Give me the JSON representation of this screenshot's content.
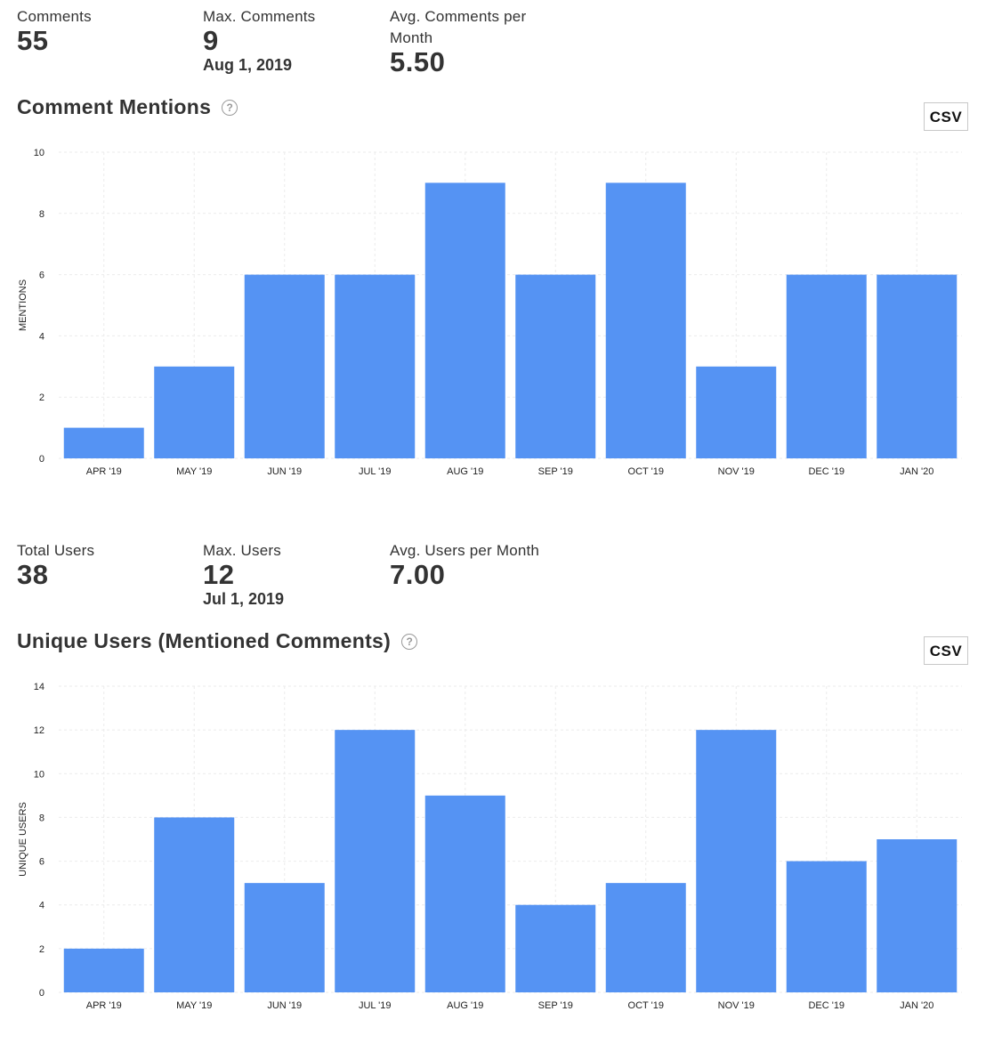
{
  "sections": [
    {
      "stats": [
        {
          "label": "Comments",
          "value": "55",
          "sub": ""
        },
        {
          "label": "Max. Comments",
          "value": "9",
          "sub": "Aug 1, 2019"
        },
        {
          "label": "Avg. Comments per Month",
          "value": "5.50",
          "sub": ""
        }
      ],
      "chart_title": "Comment Mentions",
      "help_glyph": "?",
      "csv_label": "CSV"
    },
    {
      "stats": [
        {
          "label": "Total Users",
          "value": "38",
          "sub": ""
        },
        {
          "label": "Max. Users",
          "value": "12",
          "sub": "Jul 1, 2019"
        },
        {
          "label": "Avg. Users per Month",
          "value": "7.00",
          "sub": ""
        }
      ],
      "chart_title": "Unique Users (Mentioned Comments)",
      "help_glyph": "?",
      "csv_label": "CSV"
    }
  ],
  "colors": {
    "bar": "#5593f3",
    "grid": "#ebebeb",
    "tick_text": "#222222"
  },
  "icons": {
    "help": "question-circle-icon"
  },
  "chart_data": [
    {
      "type": "bar",
      "title": "Comment Mentions",
      "categories": [
        "APR '19",
        "MAY '19",
        "JUN '19",
        "JUL '19",
        "AUG '19",
        "SEP '19",
        "OCT '19",
        "NOV '19",
        "DEC '19",
        "JAN '20"
      ],
      "values": [
        1,
        3,
        6,
        6,
        9,
        6,
        9,
        3,
        6,
        6
      ],
      "xlabel": "",
      "ylabel": "MENTIONS",
      "ylim": [
        0,
        10
      ],
      "yticks": [
        0,
        2,
        4,
        6,
        8,
        10
      ],
      "grid": true
    },
    {
      "type": "bar",
      "title": "Unique Users (Mentioned Comments)",
      "categories": [
        "APR '19",
        "MAY '19",
        "JUN '19",
        "JUL '19",
        "AUG '19",
        "SEP '19",
        "OCT '19",
        "NOV '19",
        "DEC '19",
        "JAN '20"
      ],
      "values": [
        2,
        8,
        5,
        12,
        9,
        4,
        5,
        12,
        6,
        7
      ],
      "xlabel": "",
      "ylabel": "UNIQUE USERS",
      "ylim": [
        0,
        14
      ],
      "yticks": [
        0,
        2,
        4,
        6,
        8,
        10,
        12,
        14
      ],
      "grid": true
    }
  ]
}
